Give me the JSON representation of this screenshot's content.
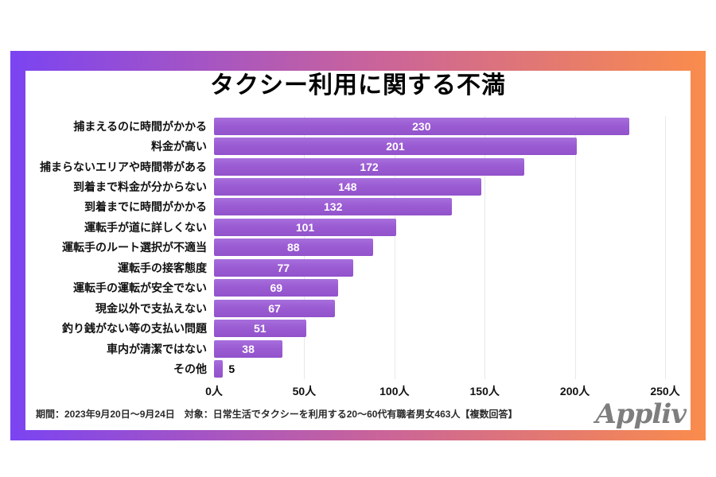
{
  "frame": {
    "gradient_from": "#7b44f2",
    "gradient_via": "#c9639b",
    "gradient_to": "#fa8c4c"
  },
  "title": "タクシー利用に関する不満",
  "chart_data": {
    "type": "bar",
    "orientation": "horizontal",
    "title": "タクシー利用に関する不満",
    "categories": [
      "捕まえるのに時間がかかる",
      "料金が高い",
      "捕まらないエリアや時間帯がある",
      "到着まで料金が分からない",
      "到着までに時間がかかる",
      "運転手が道に詳しくない",
      "運転手のルート選択が不適当",
      "運転手の接客態度",
      "運転手の運転が安全でない",
      "現金以外で支払えない",
      "釣り銭がない等の支払い問題",
      "車内が清潔ではない",
      "その他"
    ],
    "values": [
      230,
      201,
      172,
      148,
      132,
      101,
      88,
      77,
      69,
      67,
      51,
      38,
      5
    ],
    "xlim": [
      0,
      250
    ],
    "x_ticks": [
      "0人",
      "50人",
      "100人",
      "150人",
      "200人",
      "250人"
    ],
    "xlabel": "",
    "ylabel": "",
    "grid": true,
    "legend": "none",
    "bar_color": "#9b5cd3",
    "value_label_color_inside": "#ffffff",
    "value_label_color_outside": "#000000"
  },
  "footer": {
    "note": "期間：2023年9月20日～9月24日　対象：日常生活でタクシーを利用する20～60代有職者男女463人【複数回答】",
    "logo": "Appliv"
  }
}
